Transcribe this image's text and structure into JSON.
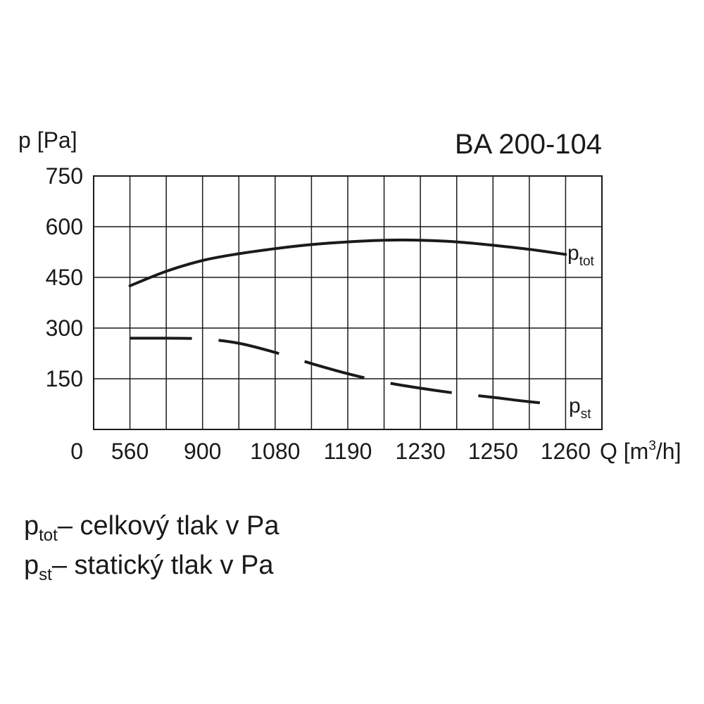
{
  "chart_data": {
    "type": "line",
    "title": "BA 200-104",
    "ylabel": "p [Pa]",
    "xlabel_prefix": "Q [m",
    "xlabel_sup": "3",
    "xlabel_suffix": "/h]",
    "origin_label": "0",
    "ylim": [
      0,
      750
    ],
    "yticks": [
      150,
      300,
      450,
      600,
      750
    ],
    "x_categories": [
      "560",
      "900",
      "1080",
      "1190",
      "1230",
      "1250",
      "1260"
    ],
    "grid": true,
    "series": [
      {
        "name_main": "p",
        "name_sub": "tot",
        "style": "solid",
        "x_index": [
          0,
          0.5,
          1,
          1.5,
          2,
          2.5,
          3,
          3.5,
          4,
          4.5,
          5,
          5.5,
          6
        ],
        "values": [
          425,
          468,
          500,
          520,
          535,
          547,
          555,
          560,
          560,
          555,
          545,
          533,
          518
        ]
      },
      {
        "name_main": "p",
        "name_sub": "st",
        "style": "dashed",
        "x_index": [
          0,
          0.5,
          1,
          1.5,
          2,
          2.5,
          3,
          3.5,
          4,
          4.5,
          5,
          5.5,
          6
        ],
        "values": [
          270,
          270,
          268,
          255,
          228,
          195,
          165,
          140,
          122,
          107,
          95,
          82,
          72
        ]
      }
    ]
  },
  "legend": [
    {
      "main": "p",
      "sub": "tot",
      "text": "– celkový tlak v Pa"
    },
    {
      "main": "p",
      "sub": "st",
      "text": "– statický  tlak v Pa"
    }
  ]
}
